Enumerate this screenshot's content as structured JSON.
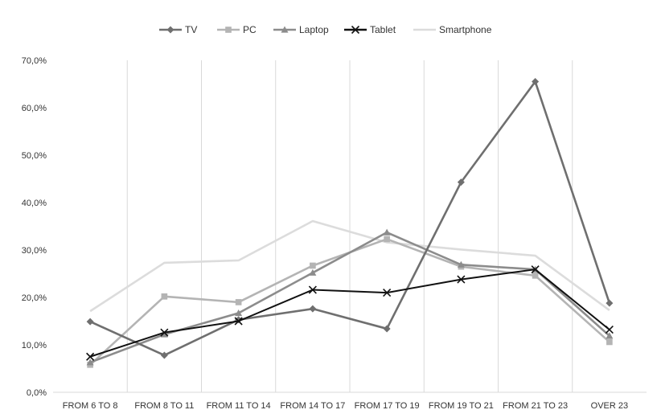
{
  "chart_data": {
    "type": "line",
    "categories": [
      "FROM 6 TO 8",
      "FROM 8 TO 11",
      "FROM 11 TO 14",
      "FROM 14 TO 17",
      "FROM 17 TO 19",
      "FROM 19 TO 21",
      "FROM 21 TO 23",
      "OVER 23"
    ],
    "series": [
      {
        "name": "TV",
        "color": "#6f6f6f",
        "marker": "diamond",
        "values": [
          14.9,
          7.8,
          15.3,
          17.6,
          13.4,
          44.3,
          65.5,
          18.8
        ]
      },
      {
        "name": "PC",
        "color": "#b4b4b4",
        "marker": "square",
        "values": [
          5.8,
          20.2,
          19.0,
          26.7,
          32.3,
          26.5,
          24.6,
          10.6
        ]
      },
      {
        "name": "Laptop",
        "color": "#8c8c8c",
        "marker": "triangle",
        "values": [
          6.3,
          12.2,
          16.7,
          25.2,
          33.7,
          26.9,
          25.9,
          11.9
        ]
      },
      {
        "name": "Tablet",
        "color": "#111111",
        "marker": "x",
        "values": [
          7.5,
          12.6,
          15.0,
          21.6,
          21.0,
          23.8,
          25.9,
          13.2
        ]
      },
      {
        "name": "Smartphone",
        "color": "#dcdcdc",
        "marker": "none",
        "values": [
          17.1,
          27.3,
          27.8,
          36.1,
          31.6,
          30.1,
          28.8,
          17.3
        ]
      }
    ],
    "yticks": [
      "0,0%",
      "10,0%",
      "20,0%",
      "30,0%",
      "40,0%",
      "50,0%",
      "60,0%",
      "70,0%"
    ],
    "ylim": [
      0,
      70
    ],
    "grid": "vertical",
    "legend": "top-center"
  }
}
